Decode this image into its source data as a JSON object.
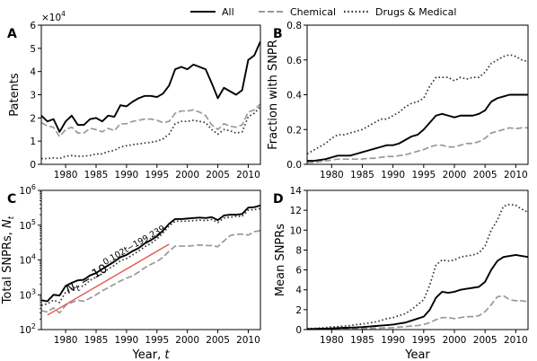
{
  "legend": [
    {
      "name": "All",
      "color": "#000000",
      "dash": "solid"
    },
    {
      "name": "Chemical",
      "color": "#999999",
      "dash": "dashed"
    },
    {
      "name": "Drugs & Medical",
      "color": "#333333",
      "dash": "dotted"
    }
  ],
  "chart_data": [
    {
      "panel": "A",
      "type": "line",
      "ylabel": "Patents",
      "y_scale_label": "×10",
      "y_scale_exp": "4",
      "xlim": [
        1976,
        2012
      ],
      "ylim": [
        0,
        6
      ],
      "xticks": [
        1980,
        1985,
        1990,
        1995,
        2000,
        2005,
        2010
      ],
      "yticks": [
        0,
        1,
        2,
        3,
        4,
        5,
        6
      ],
      "ytick_labels": [
        "0",
        "1",
        "2",
        "3",
        "4",
        "5",
        "6"
      ],
      "x": [
        1976,
        1977,
        1978,
        1979,
        1980,
        1981,
        1982,
        1983,
        1984,
        1985,
        1986,
        1987,
        1988,
        1989,
        1990,
        1991,
        1992,
        1993,
        1994,
        1995,
        1996,
        1997,
        1998,
        1999,
        2000,
        2001,
        2002,
        2003,
        2004,
        2005,
        2006,
        2007,
        2008,
        2009,
        2010,
        2011,
        2012
      ],
      "series": [
        {
          "name": "All",
          "values": [
            2.1,
            1.85,
            1.95,
            1.4,
            1.85,
            2.1,
            1.7,
            1.7,
            1.95,
            2.0,
            1.85,
            2.1,
            2.05,
            2.55,
            2.5,
            2.7,
            2.85,
            2.95,
            2.95,
            2.9,
            3.05,
            3.4,
            4.1,
            4.2,
            4.1,
            4.3,
            4.2,
            4.1,
            3.5,
            2.85,
            3.3,
            3.15,
            3.0,
            3.2,
            4.5,
            4.7,
            5.3
          ]
        },
        {
          "name": "Chemical",
          "values": [
            1.8,
            1.65,
            1.6,
            1.2,
            1.5,
            1.6,
            1.35,
            1.35,
            1.55,
            1.5,
            1.4,
            1.55,
            1.45,
            1.75,
            1.75,
            1.85,
            1.9,
            1.95,
            1.95,
            1.9,
            1.8,
            1.85,
            2.2,
            2.3,
            2.3,
            2.35,
            2.25,
            2.1,
            1.7,
            1.5,
            1.75,
            1.65,
            1.6,
            1.7,
            2.25,
            2.35,
            2.6
          ]
        },
        {
          "name": "Drugs & Medical",
          "values": [
            0.25,
            0.25,
            0.28,
            0.25,
            0.35,
            0.38,
            0.35,
            0.35,
            0.38,
            0.45,
            0.45,
            0.55,
            0.6,
            0.75,
            0.8,
            0.85,
            0.88,
            0.92,
            0.95,
            1.0,
            1.1,
            1.3,
            1.75,
            1.85,
            1.85,
            1.9,
            1.85,
            1.8,
            1.5,
            1.3,
            1.5,
            1.45,
            1.35,
            1.4,
            2.05,
            2.2,
            2.5
          ]
        }
      ]
    },
    {
      "panel": "B",
      "type": "line",
      "ylabel": "Fraction with SNPR",
      "xlim": [
        1976,
        2012
      ],
      "ylim": [
        0,
        0.8
      ],
      "xticks": [
        1980,
        1985,
        1990,
        1995,
        2000,
        2005,
        2010
      ],
      "yticks": [
        0,
        0.2,
        0.4,
        0.6,
        0.8
      ],
      "ytick_labels": [
        "0.0",
        "0.2",
        "0.4",
        "0.6",
        "0.8"
      ],
      "x": [
        1976,
        1977,
        1978,
        1979,
        1980,
        1981,
        1982,
        1983,
        1984,
        1985,
        1986,
        1987,
        1988,
        1989,
        1990,
        1991,
        1992,
        1993,
        1994,
        1995,
        1996,
        1997,
        1998,
        1999,
        2000,
        2001,
        2002,
        2003,
        2004,
        2005,
        2006,
        2007,
        2008,
        2009,
        2010,
        2011,
        2012
      ],
      "series": [
        {
          "name": "All",
          "values": [
            0.02,
            0.02,
            0.025,
            0.03,
            0.04,
            0.05,
            0.05,
            0.05,
            0.06,
            0.07,
            0.08,
            0.09,
            0.1,
            0.11,
            0.11,
            0.12,
            0.14,
            0.16,
            0.17,
            0.2,
            0.24,
            0.28,
            0.29,
            0.28,
            0.27,
            0.28,
            0.28,
            0.28,
            0.29,
            0.31,
            0.36,
            0.38,
            0.39,
            0.4,
            0.4,
            0.4,
            0.4
          ]
        },
        {
          "name": "Chemical",
          "values": [
            0.01,
            0.01,
            0.015,
            0.02,
            0.025,
            0.03,
            0.03,
            0.03,
            0.03,
            0.03,
            0.035,
            0.035,
            0.04,
            0.045,
            0.045,
            0.05,
            0.055,
            0.065,
            0.075,
            0.085,
            0.1,
            0.11,
            0.11,
            0.1,
            0.1,
            0.11,
            0.12,
            0.12,
            0.13,
            0.15,
            0.18,
            0.19,
            0.2,
            0.21,
            0.205,
            0.21,
            0.21
          ]
        },
        {
          "name": "Drugs & Medical",
          "values": [
            0.06,
            0.08,
            0.1,
            0.12,
            0.15,
            0.17,
            0.17,
            0.18,
            0.19,
            0.2,
            0.22,
            0.24,
            0.26,
            0.26,
            0.28,
            0.3,
            0.33,
            0.35,
            0.36,
            0.38,
            0.45,
            0.5,
            0.5,
            0.5,
            0.48,
            0.5,
            0.49,
            0.5,
            0.5,
            0.53,
            0.58,
            0.6,
            0.62,
            0.63,
            0.62,
            0.6,
            0.59
          ]
        }
      ]
    },
    {
      "panel": "C",
      "type": "line",
      "ylabel": "Total SNPRs, ",
      "ylabel_var": "N",
      "ylabel_sub": "t",
      "xlabel": "Year, ",
      "xlabel_var": "t",
      "y_scale": "log",
      "xlim": [
        1976,
        2012
      ],
      "ylim": [
        100,
        1000000
      ],
      "xticks": [
        1980,
        1985,
        1990,
        1995,
        2000,
        2005,
        2010
      ],
      "ytick_exps": [
        "2",
        "3",
        "4",
        "5",
        "6"
      ],
      "ytick_base": "10",
      "annotation": {
        "lhs_var": "N",
        "lhs_sub": "t",
        "mid": " = 10",
        "exp": "0.102t−199.239"
      },
      "fit_range": [
        1977,
        1997
      ],
      "fit_color": "#e0584f",
      "x": [
        1976,
        1977,
        1978,
        1979,
        1980,
        1981,
        1982,
        1983,
        1984,
        1985,
        1986,
        1987,
        1988,
        1989,
        1990,
        1991,
        1992,
        1993,
        1994,
        1995,
        1996,
        1997,
        1998,
        1999,
        2000,
        2001,
        2002,
        2003,
        2004,
        2005,
        2006,
        2007,
        2008,
        2009,
        2010,
        2011,
        2012
      ],
      "series": [
        {
          "name": "All",
          "values": [
            700,
            650,
            1000,
            950,
            1800,
            2200,
            2600,
            2700,
            3600,
            4200,
            5500,
            7000,
            9000,
            12000,
            14000,
            18000,
            22000,
            30000,
            37000,
            48000,
            70000,
            110000,
            150000,
            150000,
            155000,
            160000,
            165000,
            160000,
            170000,
            140000,
            190000,
            200000,
            200000,
            210000,
            320000,
            330000,
            370000
          ]
        },
        {
          "name": "Chemical",
          "values": [
            350,
            320,
            420,
            300,
            500,
            600,
            700,
            650,
            800,
            1000,
            1300,
            1600,
            2000,
            2500,
            3000,
            3500,
            4500,
            6000,
            7500,
            9000,
            12000,
            18000,
            25000,
            25000,
            25000,
            26000,
            27000,
            26000,
            26000,
            24000,
            35000,
            50000,
            55000,
            55000,
            52000,
            65000,
            70000
          ]
        },
        {
          "name": "Drugs & Medical",
          "values": [
            500,
            550,
            700,
            600,
            1200,
            1500,
            1700,
            1800,
            2600,
            3200,
            4000,
            5500,
            7000,
            9500,
            11000,
            14000,
            18000,
            24000,
            30000,
            40000,
            60000,
            95000,
            130000,
            130000,
            130000,
            135000,
            140000,
            135000,
            145000,
            120000,
            160000,
            170000,
            180000,
            180000,
            270000,
            280000,
            300000
          ]
        }
      ]
    },
    {
      "panel": "D",
      "type": "line",
      "ylabel": "Mean SNPRs",
      "xlabel": "Year",
      "xlim": [
        1976,
        2012
      ],
      "ylim": [
        0,
        14
      ],
      "xticks": [
        1980,
        1985,
        1990,
        1995,
        2000,
        2005,
        2010
      ],
      "yticks": [
        0,
        2,
        4,
        6,
        8,
        10,
        12,
        14
      ],
      "ytick_labels": [
        "0",
        "2",
        "4",
        "6",
        "8",
        "10",
        "12",
        "14"
      ],
      "x": [
        1976,
        1977,
        1978,
        1979,
        1980,
        1981,
        1982,
        1983,
        1984,
        1985,
        1986,
        1987,
        1988,
        1989,
        1990,
        1991,
        1992,
        1993,
        1994,
        1995,
        1996,
        1997,
        1998,
        1999,
        2000,
        2001,
        2002,
        2003,
        2004,
        2005,
        2006,
        2007,
        2008,
        2009,
        2010,
        2011,
        2012
      ],
      "series": [
        {
          "name": "All",
          "values": [
            0.05,
            0.06,
            0.08,
            0.1,
            0.12,
            0.15,
            0.18,
            0.2,
            0.22,
            0.25,
            0.3,
            0.35,
            0.4,
            0.45,
            0.5,
            0.6,
            0.7,
            0.9,
            1.1,
            1.3,
            2.0,
            3.2,
            3.8,
            3.7,
            3.8,
            4.0,
            4.1,
            4.2,
            4.3,
            4.8,
            6.0,
            6.9,
            7.3,
            7.4,
            7.5,
            7.4,
            7.3
          ]
        },
        {
          "name": "Chemical",
          "values": [
            0.02,
            0.03,
            0.03,
            0.04,
            0.05,
            0.06,
            0.07,
            0.08,
            0.09,
            0.1,
            0.12,
            0.14,
            0.16,
            0.18,
            0.2,
            0.25,
            0.3,
            0.35,
            0.4,
            0.5,
            0.7,
            1.0,
            1.2,
            1.2,
            1.1,
            1.2,
            1.3,
            1.3,
            1.4,
            1.8,
            2.5,
            3.3,
            3.4,
            3.0,
            2.9,
            2.9,
            2.8
          ]
        },
        {
          "name": "Drugs & Medical",
          "values": [
            0.1,
            0.12,
            0.15,
            0.2,
            0.25,
            0.3,
            0.35,
            0.4,
            0.5,
            0.55,
            0.65,
            0.75,
            0.9,
            1.1,
            1.2,
            1.4,
            1.6,
            2.0,
            2.5,
            3.0,
            4.5,
            6.5,
            7.0,
            6.9,
            7.0,
            7.3,
            7.4,
            7.5,
            7.7,
            8.4,
            10.0,
            11.0,
            12.4,
            12.6,
            12.5,
            12.1,
            11.8
          ]
        }
      ]
    }
  ]
}
